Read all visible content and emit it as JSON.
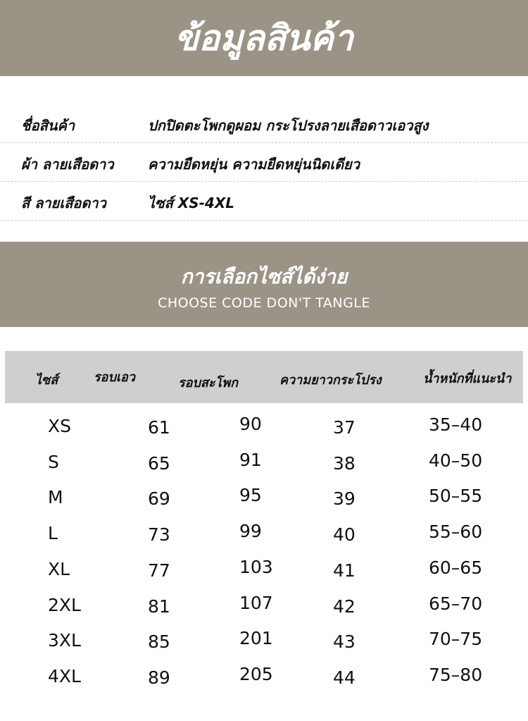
{
  "header": {
    "title": "ข้อมูลสินค้า"
  },
  "info": [
    {
      "label": "ชื่อสินค้า",
      "value": "ปกปิดตะโพกดูผอม กระโปรงลายเสือดาวเอวสูง"
    },
    {
      "label": "ผ้า ลายเสือดาว",
      "value": "ความยืดหยุ่น ความยืดหยุ่นนิดเดียว"
    },
    {
      "label": "สี ลายเสือดาว",
      "value": "ไซส์ XS-4XL"
    }
  ],
  "section": {
    "title": "การเลือกไซส์ได้ง่าย",
    "subtitle": "CHOOSE CODE DON'T TANGLE"
  },
  "table": {
    "headers": [
      "ไซส์",
      "รอบเอว",
      "รอบสะโพก",
      "ความยาวกระโปรง",
      "น้ำหนักที่แนะนำ"
    ],
    "rows": [
      [
        "XS",
        "61",
        "90",
        "37",
        "35–40"
      ],
      [
        "S",
        "65",
        "91",
        "38",
        "40–50"
      ],
      [
        "M",
        "69",
        "95",
        "39",
        "50–55"
      ],
      [
        "L",
        "73",
        "99",
        "40",
        "55–60"
      ],
      [
        "XL",
        "77",
        "103",
        "41",
        "60–65"
      ],
      [
        "2XL",
        "81",
        "107",
        "42",
        "65–70"
      ],
      [
        "3XL",
        "85",
        "201",
        "43",
        "70–75"
      ],
      [
        "4XL",
        "89",
        "205",
        "44",
        "75–80"
      ]
    ]
  }
}
